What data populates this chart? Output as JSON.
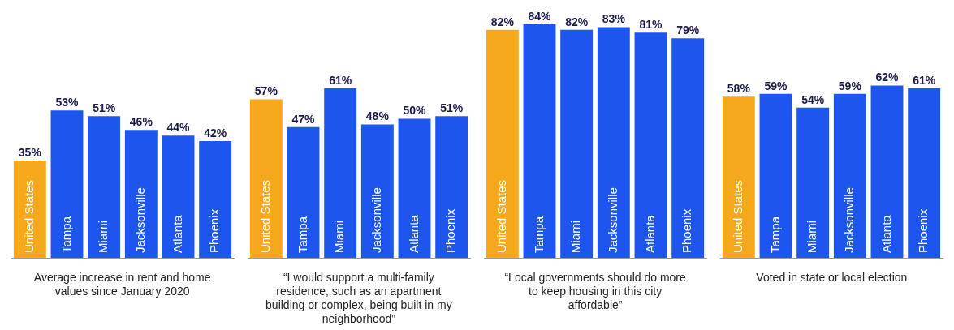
{
  "chart_data": [
    {
      "type": "bar",
      "xlabel": "Average increase in rent and home values since January 2020",
      "categories": [
        "United States",
        "Tampa",
        "Miami",
        "Jacksonville",
        "Atlanta",
        "Phoenix"
      ],
      "values": [
        35,
        53,
        51,
        46,
        44,
        42
      ],
      "value_labels": [
        "35%",
        "53%",
        "51%",
        "46%",
        "44%",
        "42%"
      ],
      "colors": [
        "#f5a81c",
        "#1d56ee",
        "#1d56ee",
        "#1d56ee",
        "#1d56ee",
        "#1d56ee"
      ]
    },
    {
      "type": "bar",
      "xlabel": "“I would support a multi-family residence, such as an apartment building or complex, being built in my neighborhood”",
      "categories": [
        "United States",
        "Tampa",
        "Miami",
        "Jacksonville",
        "Atlanta",
        "Phoenix"
      ],
      "values": [
        57,
        47,
        61,
        48,
        50,
        51
      ],
      "value_labels": [
        "57%",
        "47%",
        "61%",
        "48%",
        "50%",
        "51%"
      ],
      "colors": [
        "#f5a81c",
        "#1d56ee",
        "#1d56ee",
        "#1d56ee",
        "#1d56ee",
        "#1d56ee"
      ]
    },
    {
      "type": "bar",
      "xlabel": "“Local governments should do more to keep housing in this city affordable”",
      "categories": [
        "United States",
        "Tampa",
        "Miami",
        "Jacksonville",
        "Atlanta",
        "Phoenix"
      ],
      "values": [
        82,
        84,
        82,
        83,
        81,
        79
      ],
      "value_labels": [
        "82%",
        "84%",
        "82%",
        "83%",
        "81%",
        "79%"
      ],
      "colors": [
        "#f5a81c",
        "#1d56ee",
        "#1d56ee",
        "#1d56ee",
        "#1d56ee",
        "#1d56ee"
      ]
    },
    {
      "type": "bar",
      "xlabel": "Voted in state or local election",
      "categories": [
        "United States",
        "Tampa",
        "Miami",
        "Jacksonville",
        "Atlanta",
        "Phoenix"
      ],
      "values": [
        58,
        59,
        54,
        59,
        62,
        61
      ],
      "value_labels": [
        "58%",
        "59%",
        "54%",
        "59%",
        "62%",
        "61%"
      ],
      "colors": [
        "#f5a81c",
        "#1d56ee",
        "#1d56ee",
        "#1d56ee",
        "#1d56ee",
        "#1d56ee"
      ]
    }
  ]
}
